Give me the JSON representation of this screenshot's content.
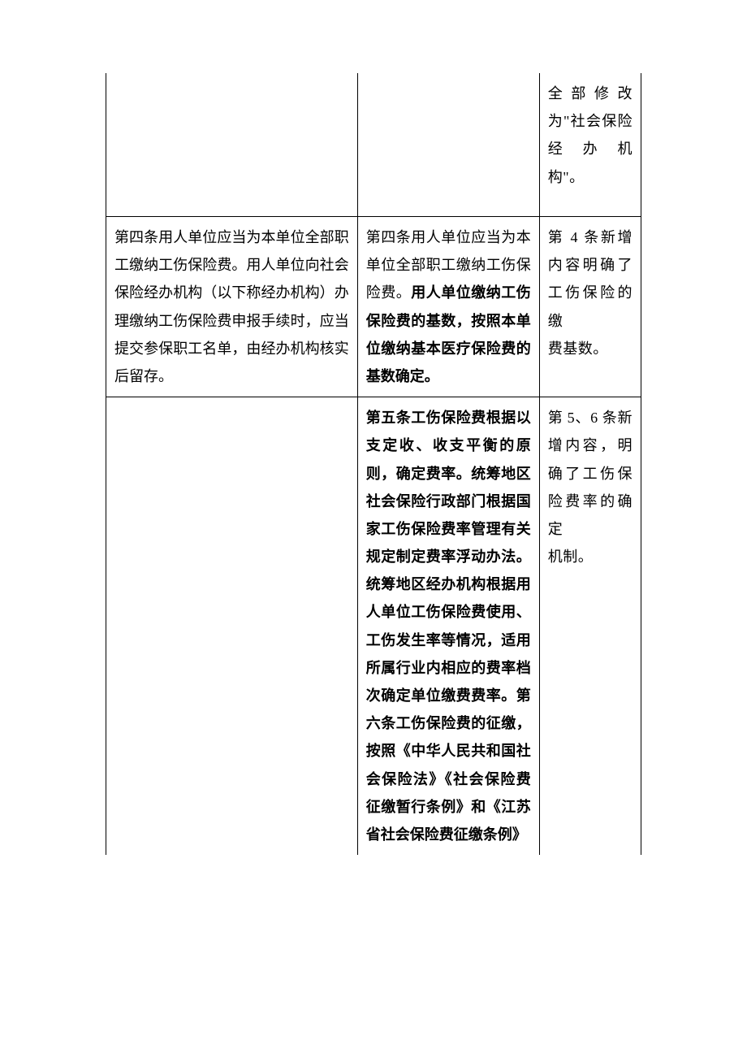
{
  "rows": [
    {
      "c1": "",
      "c2": "",
      "c3_prefix": "全部修改为\"社会保险经办机",
      "c3_last": "构\"。",
      "divider": false,
      "spacer": true
    },
    {
      "c1": "第四条用人单位应当为本单位全部职工缴纳工伤保险费。用人单位向社会保险经办机构（以下称经办机构）办理缴纳工伤保险费申报手续时，应当提交参保职工名单，由经办机构核实后留存。",
      "c2_plain": "第四条用人单位应当为本单位全部职工缴纳工伤保险费。",
      "c2_bold": "用人单位缴纳工伤保险费的基数，按照本单位缴纳基本医疗保险费的基数确定。",
      "c3_prefix": "第 4 条新增内容明确了工伤保险的缴",
      "c3_last": "费基数。",
      "divider": true,
      "spacer": false
    },
    {
      "c1": "",
      "c2_bold_full": "第五条工伤保险费根据以支定收、收支平衡的原则，确定费率。统筹地区社会保险行政部门根据国家工伤保险费率管理有关规定制定费率浮动办法。统筹地区经办机构根据用人单位工伤保险费使用、工伤发生率等情况，适用所属行业内相应的费率档次确定单位缴费费率。第六条工伤保险费的征缴，按照《中华人民共和国社会保险法》《社会保险费征缴暂行条例》和《江苏省社会保险费征缴条例》",
      "c3_prefix": "第 5、6 条新增内容，明确了工伤保险费率的确定",
      "c3_last": "机制。",
      "divider": true,
      "spacer": false
    }
  ]
}
